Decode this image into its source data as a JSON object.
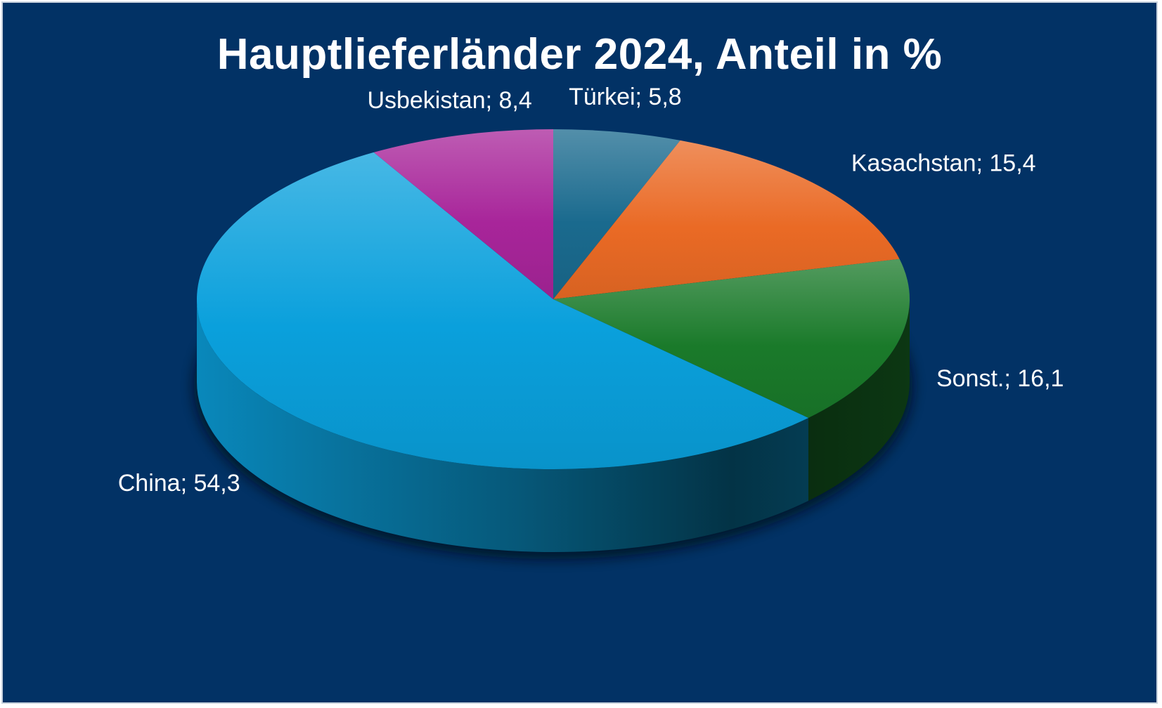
{
  "chart_data": {
    "type": "pie",
    "title": "Hauptlieferländer 2024, Anteil in %",
    "style": "3d",
    "slices": [
      {
        "label": "Türkei",
        "value": 5.8,
        "display": "Türkei; 5,8",
        "color": "#1a6a8e"
      },
      {
        "label": "Kasachstan",
        "value": 15.4,
        "display": "Kasachstan; 15,4",
        "color": "#ea6a25"
      },
      {
        "label": "Sonst.",
        "value": 16.1,
        "display": "Sonst.; 16,1",
        "color": "#1a7a2a"
      },
      {
        "label": "China",
        "value": 54.3,
        "display": "China; 54,3",
        "color": "#0aa0dc"
      },
      {
        "label": "Usbekistan",
        "value": 8.4,
        "display": "Usbekistan; 8,4",
        "color": "#a8259a"
      }
    ]
  },
  "colors": {
    "background": "#023265",
    "text": "#ffffff"
  }
}
